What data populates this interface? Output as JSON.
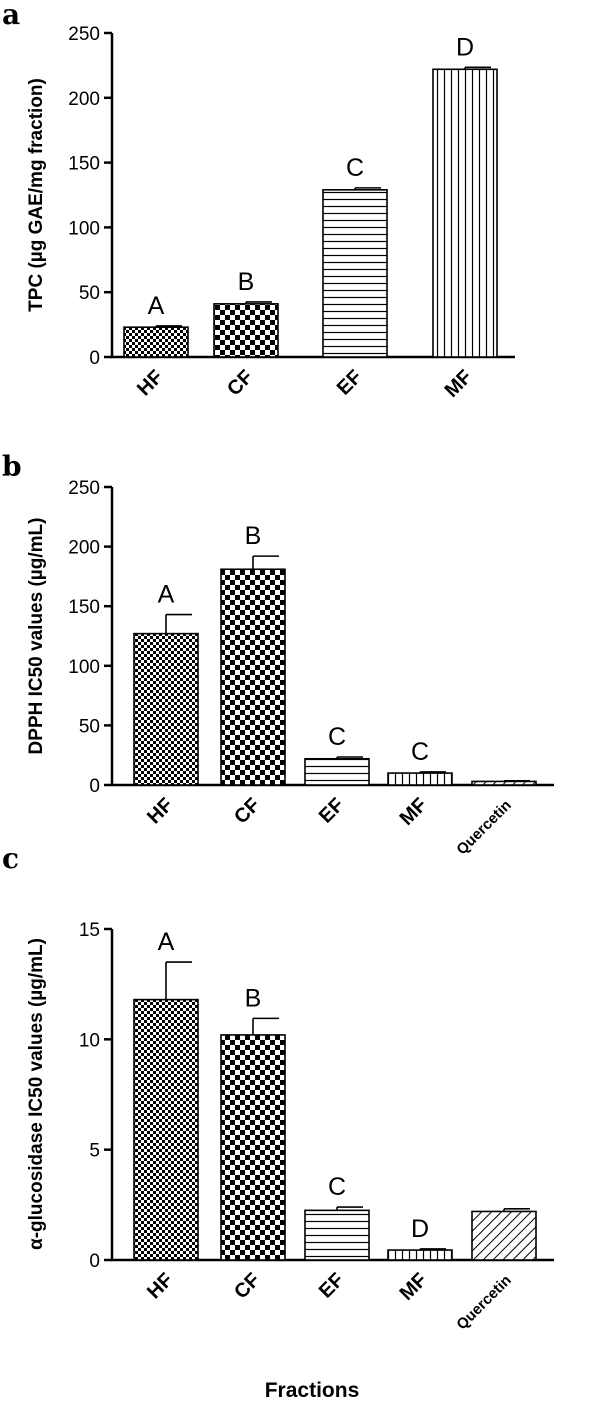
{
  "chart_data": [
    {
      "type": "bar",
      "panel": "a",
      "ylabel": "TPC (µg GAE/mg fraction)",
      "ylim": [
        0,
        250
      ],
      "yticks": [
        0,
        50,
        100,
        150,
        200,
        250
      ],
      "categories": [
        "HF",
        "CF",
        "EF",
        "MF"
      ],
      "values": [
        23,
        41,
        129,
        222
      ],
      "errors": [
        1,
        1.5,
        1.5,
        1.5
      ],
      "significance": [
        "A",
        "B",
        "C",
        "D"
      ],
      "patterns": [
        "fine-check",
        "check",
        "horizontal",
        "vertical"
      ]
    },
    {
      "type": "bar",
      "panel": "b",
      "ylabel": "DPPH IC50 values (µg/mL)",
      "ylim": [
        0,
        250
      ],
      "yticks": [
        0,
        50,
        100,
        150,
        200,
        250
      ],
      "categories": [
        "HF",
        "CF",
        "EF",
        "MF",
        "Quercetin"
      ],
      "values": [
        127,
        181,
        22,
        10,
        3
      ],
      "errors": [
        16,
        11,
        1.5,
        1,
        0.5
      ],
      "significance": [
        "A",
        "B",
        "C",
        "C",
        ""
      ],
      "patterns": [
        "fine-check",
        "check",
        "horizontal",
        "vertical",
        "diagonal"
      ]
    },
    {
      "type": "bar",
      "panel": "c",
      "ylabel": "α-glucosidase IC50 values (µg/mL)",
      "xlabel": "Fractions",
      "ylim": [
        0,
        15
      ],
      "yticks": [
        0,
        5,
        10,
        15
      ],
      "categories": [
        "HF",
        "CF",
        "EF",
        "MF",
        "Quercetin"
      ],
      "values": [
        11.8,
        10.2,
        2.25,
        0.45,
        2.2
      ],
      "errors": [
        1.7,
        0.75,
        0.15,
        0.05,
        0.12
      ],
      "significance": [
        "A",
        "B",
        "C",
        "D",
        ""
      ],
      "patterns": [
        "fine-check",
        "check",
        "horizontal",
        "vertical",
        "diagonal"
      ]
    }
  ]
}
